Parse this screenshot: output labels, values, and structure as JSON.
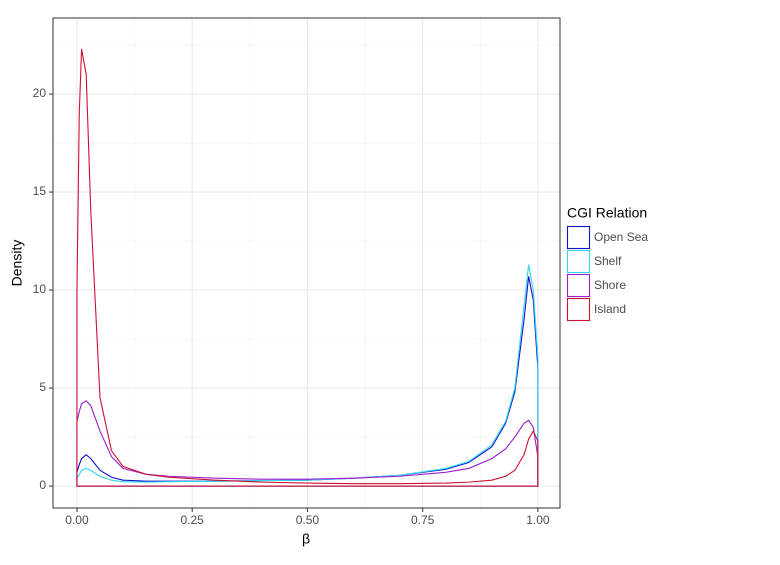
{
  "chart_data": {
    "type": "density",
    "x_label": "β",
    "y_label": "Density",
    "legend_title": "CGI Relation",
    "legend_position": "right",
    "grid": true,
    "xlim": [
      -0.052,
      1.048
    ],
    "ylim": [
      -1.12,
      23.88
    ],
    "xticks": [
      {
        "value": 0,
        "label": "0.00"
      },
      {
        "value": 0.25,
        "label": "0.25"
      },
      {
        "value": 0.5,
        "label": "0.50"
      },
      {
        "value": 0.75,
        "label": "0.75"
      },
      {
        "value": 1,
        "label": "1.00"
      }
    ],
    "yticks": [
      0,
      5,
      10,
      15,
      20
    ],
    "x_minor_grid": [
      0.125,
      0.375,
      0.625,
      0.875
    ],
    "y_minor_grid": [
      2.5,
      7.5,
      12.5,
      17.5,
      22.5
    ],
    "x": [
      0,
      0.005,
      0.01,
      0.02,
      0.03,
      0.05,
      0.075,
      0.1,
      0.15,
      0.2,
      0.3,
      0.4,
      0.5,
      0.6,
      0.7,
      0.8,
      0.85,
      0.9,
      0.93,
      0.95,
      0.97,
      0.98,
      0.99,
      1
    ],
    "series": [
      {
        "name": "Open Sea",
        "color": "#1010d0",
        "values": [
          0.7,
          1.1,
          1.4,
          1.6,
          1.4,
          0.8,
          0.45,
          0.3,
          0.25,
          0.25,
          0.25,
          0.28,
          0.3,
          0.4,
          0.55,
          0.85,
          1.2,
          2.0,
          3.2,
          4.8,
          8.5,
          10.7,
          9.5,
          6
        ]
      },
      {
        "name": "Shelf",
        "color": "#30d8ea",
        "values": [
          0.4,
          0.6,
          0.8,
          0.9,
          0.8,
          0.5,
          0.3,
          0.22,
          0.2,
          0.22,
          0.25,
          0.28,
          0.3,
          0.4,
          0.55,
          0.9,
          1.25,
          2.1,
          3.3,
          5.0,
          9.2,
          11.3,
          10,
          6.5
        ]
      },
      {
        "name": "Shore",
        "color": "#9a1fd0",
        "values": [
          3.3,
          3.8,
          4.2,
          4.35,
          4.1,
          2.8,
          1.5,
          0.9,
          0.6,
          0.5,
          0.4,
          0.35,
          0.35,
          0.4,
          0.5,
          0.7,
          0.9,
          1.4,
          1.9,
          2.5,
          3.2,
          3.35,
          3.0,
          1.5
        ]
      },
      {
        "name": "Island",
        "color": "#cc1133",
        "values": [
          10,
          19,
          22.3,
          21,
          14,
          4.5,
          1.8,
          1.0,
          0.6,
          0.45,
          0.3,
          0.2,
          0.15,
          0.12,
          0.12,
          0.15,
          0.2,
          0.3,
          0.5,
          0.8,
          1.6,
          2.4,
          2.8,
          2.3
        ]
      }
    ]
  }
}
